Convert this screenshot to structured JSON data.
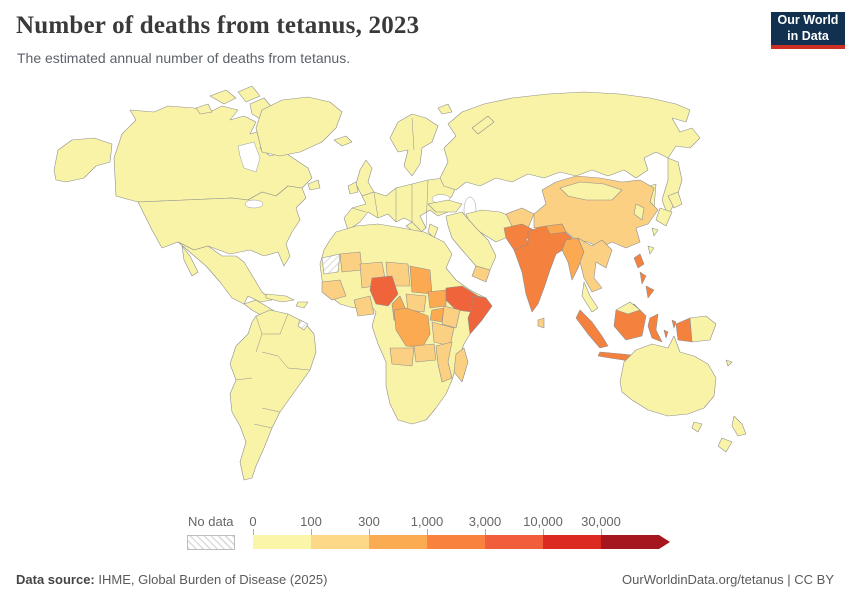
{
  "header": {
    "title": "Number of deaths from tetanus, 2023",
    "subtitle": "The estimated annual number of deaths from tetanus."
  },
  "logo": {
    "line1": "Our World",
    "line2": "in Data",
    "bg": "#12304f",
    "accent": "#cd3023"
  },
  "legend": {
    "no_data_label": "No data",
    "tick_labels": [
      "0",
      "100",
      "300",
      "1,000",
      "3,000",
      "10,000",
      "30,000"
    ],
    "bin_colors": [
      "#faf5a9",
      "#fdd887",
      "#fbac53",
      "#f8823e",
      "#f15e3b",
      "#dc2a23",
      "#a5161f"
    ]
  },
  "footer": {
    "source_label": "Data source:",
    "source_text": " IHME, Global Burden of Disease (2025)",
    "right_text": "OurWorldinData.org/tetanus | CC BY"
  },
  "map": {
    "border_color": "#8f8f8f",
    "bins": {
      "b0": "#f8f3a6",
      "b1": "#fbd083",
      "b2": "#fbaa52",
      "b3": "#f5813e",
      "b4": "#f0643b",
      "b5": "#dc2a23",
      "b6": "#a5161f"
    },
    "countries": {
      "canada": "b0",
      "united-states": "b0",
      "greenland": "b0",
      "mexico": "b0",
      "central-america": "b0",
      "cuba": "b0",
      "hispaniola": "b0",
      "south-america": "b0",
      "french-guiana": "no-data",
      "iceland": "b0",
      "united-kingdom": "b0",
      "ireland": "b0",
      "scandinavia": "b0",
      "europe": "b0",
      "russia": "b0",
      "svalbard": "b0",
      "turkey": "b0",
      "iran": "b0",
      "arabia": "b0",
      "yemen": "b1",
      "africa-base": "b0",
      "western-sahara": "no-data",
      "mauritania": "b1",
      "mali": "b1",
      "niger": "b1",
      "chad": "b2",
      "senegal-guinea": "b1",
      "ghana-benin": "b1",
      "nigeria": "b4",
      "cameroon": "b2",
      "central-african-republic": "b1",
      "south-sudan": "b2",
      "ethiopia": "b4",
      "somalia": "b4",
      "uganda": "b2",
      "kenya": "b1",
      "tanzania": "b1",
      "drc": "b2",
      "angola": "b1",
      "zambia": "b1",
      "mozambique": "b1",
      "madagascar": "b1",
      "afghanistan": "b1",
      "pakistan": "b3",
      "india": "b3",
      "sri-lanka": "b1",
      "nepal": "b2",
      "bangladesh": "b2",
      "china": "b1",
      "mongolia": "b0",
      "south-korea": "b0",
      "japan": "b0",
      "taiwan": "b0",
      "myanmar": "b2",
      "indochina": "b1",
      "malay-peninsula": "b0",
      "philippines": "b3",
      "indonesia": "b3",
      "borneo-malaysia": "b0",
      "papua-new-guinea": "b0",
      "australia": "b0",
      "new-zealand": "b0",
      "new-caledonia": "b0"
    }
  },
  "chart_data": {
    "type": "choropleth",
    "title": "Number of deaths from tetanus, 2023",
    "year": 2023,
    "unit": "deaths",
    "color_scale": {
      "thresholds": [
        "0",
        "100",
        "300",
        "1,000",
        "3,000",
        "10,000",
        "30,000"
      ],
      "colors": [
        "#faf5a9",
        "#fdd887",
        "#fbac53",
        "#f8823e",
        "#f15e3b",
        "#dc2a23",
        "#a5161f"
      ],
      "no_data_hatched": true,
      "legend_position": "bottom"
    },
    "values_by_bin": {
      "0-100": [
        "United States",
        "Canada",
        "Greenland",
        "Mexico",
        "Central America",
        "Caribbean",
        "South America",
        "Europe",
        "Russia",
        "Kazakhstan",
        "Mongolia",
        "Japan",
        "South Korea",
        "Turkey",
        "Iran",
        "Saudi Arabia",
        "North Africa",
        "South Africa",
        "Namibia",
        "Botswana",
        "Malaysia",
        "Papua New Guinea",
        "Australia",
        "New Zealand"
      ],
      "100-300": [
        "China",
        "Afghanistan",
        "Yemen",
        "Mauritania",
        "Mali",
        "Niger",
        "Senegal",
        "Guinea",
        "Ghana",
        "Benin",
        "Central African Republic",
        "Kenya",
        "Tanzania",
        "Angola",
        "Zambia",
        "Mozambique",
        "Madagascar",
        "Thailand",
        "Laos",
        "Vietnam",
        "Cambodia",
        "Sri Lanka"
      ],
      "300-1,000": [
        "Chad",
        "Cameroon",
        "South Sudan",
        "Uganda",
        "Democratic Republic of Congo",
        "Myanmar",
        "Bangladesh",
        "Nepal"
      ],
      "1,000-3,000": [
        "India",
        "Pakistan",
        "Indonesia",
        "Philippines"
      ],
      "3,000-10,000": [
        "Nigeria",
        "Ethiopia",
        "Somalia"
      ],
      "no_data": [
        "Western Sahara",
        "French Guiana"
      ]
    }
  }
}
